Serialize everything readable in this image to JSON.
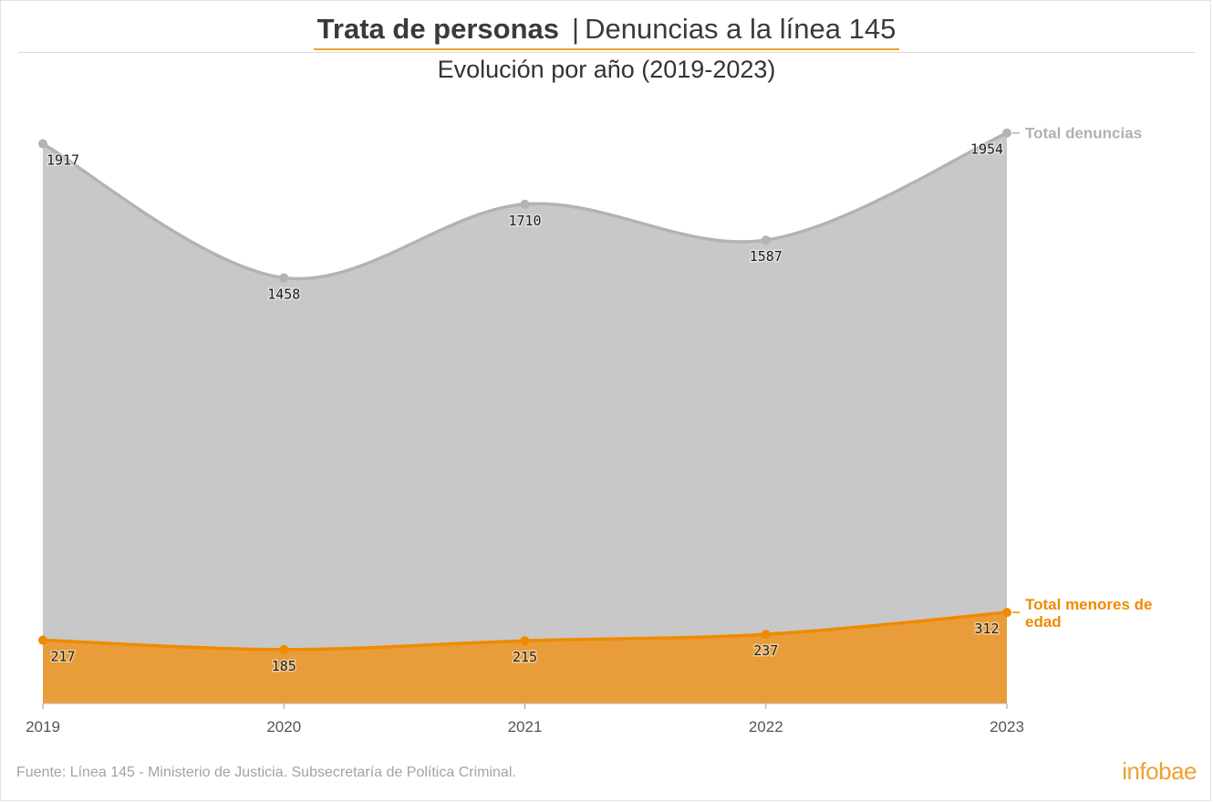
{
  "header": {
    "title_bold": "Trata de personas",
    "title_separator": "|",
    "title_rest": "Denuncias a la línea 145",
    "subtitle": "Evolución por año (2019-2023)"
  },
  "footer": {
    "source": "Fuente: Línea 145 - Ministerio de Justicia. Subsecretaría de Política Criminal.",
    "brand": "infobae"
  },
  "colors": {
    "total_fill": "#c8c8c8",
    "total_line": "#b3b3b3",
    "total_label": "#b0b0b0",
    "minors_fill": "#e89d3a",
    "minors_line": "#f08a00",
    "minors_label": "#f08a00",
    "axis_text": "#555555",
    "value_text": "#222222"
  },
  "chart_data": {
    "type": "area",
    "x": [
      "2019",
      "2020",
      "2021",
      "2022",
      "2023"
    ],
    "series": [
      {
        "name": "Total denuncias",
        "values": [
          1917,
          1458,
          1710,
          1587,
          1954
        ]
      },
      {
        "name": "Total menores de edad",
        "values": [
          217,
          185,
          215,
          237,
          312
        ]
      }
    ],
    "ylim": [
      0,
      2000
    ],
    "grid": false,
    "legend": "right, at line ends",
    "data_labels": true
  }
}
